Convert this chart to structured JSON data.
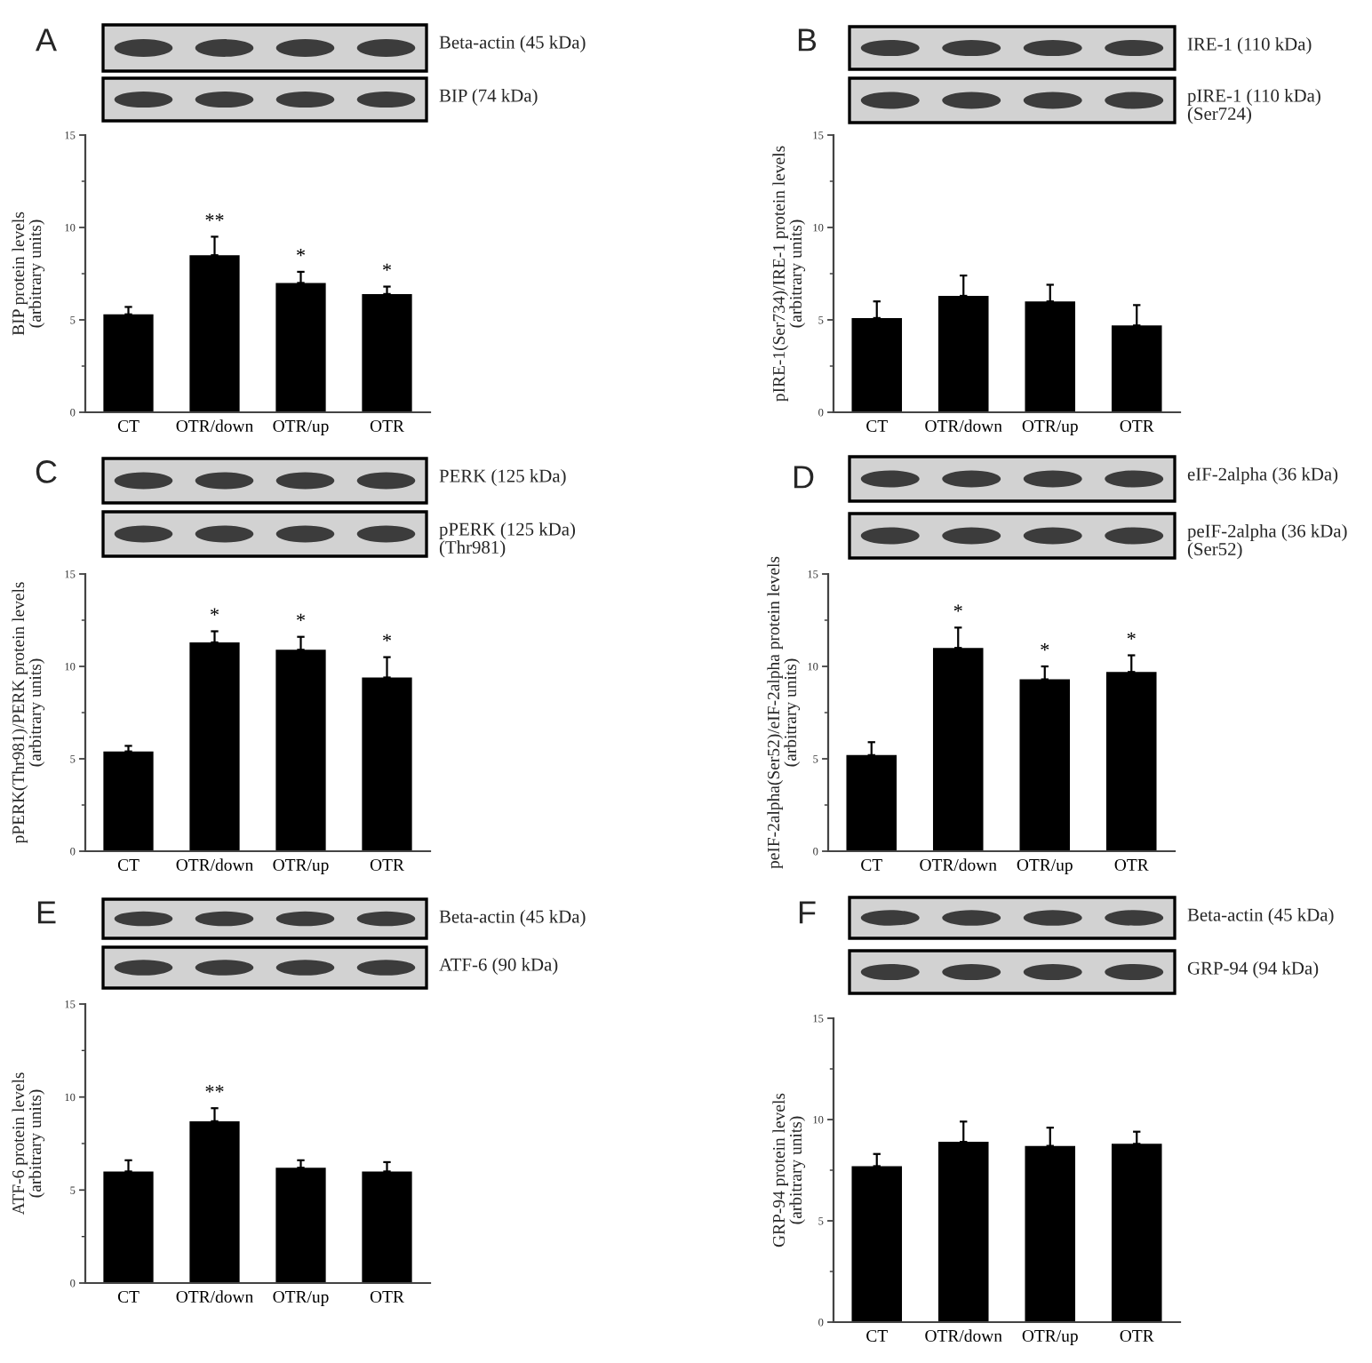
{
  "chart_data": [
    {
      "type": "bar",
      "title": "A",
      "categories": [
        "CT",
        "OTR/down",
        "OTR/up",
        "OTR"
      ],
      "values": [
        5.3,
        8.5,
        7.0,
        6.4
      ],
      "errors": [
        [
          5.3,
          5.7
        ],
        [
          8.5,
          9.5
        ],
        [
          7.0,
          7.6
        ],
        [
          6.4,
          6.8
        ]
      ],
      "color": "#000000",
      "ylim": [
        0,
        15
      ],
      "yticks": [
        0,
        {
          "value": 2.5,
          "label": null
        },
        5,
        {
          "value": 7.5,
          "label": null
        },
        10,
        {
          "value": 12.5,
          "label": null
        },
        15
      ],
      "ylabel": "BIP protein levels\n(arbitrary units)",
      "annotations": [
        "Beta-actin (45 kDa)",
        "BIP (74 kDa)",
        {
          "text": "**",
          "x": "OTR/down",
          "y": 8.5
        },
        {
          "text": "*",
          "x": "OTR/up",
          "y": 7.0
        },
        {
          "text": "*",
          "x": "OTR",
          "y": 6.4
        }
      ]
    },
    {
      "type": "bar",
      "title": "B",
      "categories": [
        "CT",
        "OTR/down",
        "OTR/up",
        "OTR"
      ],
      "values": [
        5.1,
        6.3,
        6.0,
        4.7
      ],
      "errors": [
        [
          5.1,
          6.0
        ],
        [
          6.3,
          7.4
        ],
        [
          6.0,
          6.9
        ],
        [
          4.7,
          5.8
        ]
      ],
      "color": "#000000",
      "ylim": [
        0,
        15
      ],
      "yticks": [
        0,
        {
          "value": 2.5,
          "label": null
        },
        5,
        {
          "value": 7.5,
          "label": null
        },
        10,
        {
          "value": 12.5,
          "label": null
        },
        15
      ],
      "ylabel": "pIRE-1(Ser734)/IRE-1 protein levels\n(arbitrary units)",
      "annotations": [
        "IRE-1 (110 kDa)",
        "pIRE-1 (110 kDa)\n(Ser724)"
      ]
    },
    {
      "type": "bar",
      "title": "C",
      "categories": [
        "CT",
        "OTR/down",
        "OTR/up",
        "OTR"
      ],
      "values": [
        5.4,
        11.3,
        10.9,
        9.4
      ],
      "errors": [
        [
          5.4,
          5.7
        ],
        [
          11.3,
          11.9
        ],
        [
          10.9,
          11.6
        ],
        [
          9.4,
          10.5
        ]
      ],
      "color": "#000000",
      "ylim": [
        0,
        15
      ],
      "yticks": [
        0,
        {
          "value": 2.5,
          "label": null
        },
        5,
        {
          "value": 7.5,
          "label": null
        },
        10,
        {
          "value": 12.5,
          "label": null
        },
        15
      ],
      "ylabel": "pPERK(Thr981)/PERK protein levels\n(arbitrary units)",
      "annotations": [
        "PERK (125 kDa)",
        "pPERK (125 kDa)\n(Thr981)",
        {
          "text": "*",
          "x": "OTR/down",
          "y": 11.3
        },
        {
          "text": "*",
          "x": "OTR/up",
          "y": 10.9
        },
        {
          "text": "*",
          "x": "OTR",
          "y": 9.4
        }
      ]
    },
    {
      "type": "bar",
      "title": "D",
      "categories": [
        "CT",
        "OTR/down",
        "OTR/up",
        "OTR"
      ],
      "values": [
        5.2,
        11.0,
        9.3,
        9.7
      ],
      "errors": [
        [
          5.2,
          5.9
        ],
        [
          11.0,
          12.1
        ],
        [
          9.3,
          10.0
        ],
        [
          9.7,
          10.6
        ]
      ],
      "color": "#000000",
      "ylim": [
        0,
        15
      ],
      "yticks": [
        0,
        {
          "value": 2.5,
          "label": null
        },
        5,
        {
          "value": 7.5,
          "label": null
        },
        10,
        {
          "value": 12.5,
          "label": null
        },
        15
      ],
      "ylabel": "peIF-2alpha(Ser52)/eIF-2alpha protein levels\n(arbitrary units)",
      "annotations": [
        "eIF-2alpha (36 kDa)",
        "peIF-2alpha (36 kDa)\n(Ser52)",
        {
          "text": "*",
          "x": "OTR/down",
          "y": 11.0
        },
        {
          "text": "*",
          "x": "OTR/up",
          "y": 9.3
        },
        {
          "text": "*",
          "x": "OTR",
          "y": 9.7
        }
      ]
    },
    {
      "type": "bar",
      "title": "E",
      "categories": [
        "CT",
        "OTR/down",
        "OTR/up",
        "OTR"
      ],
      "values": [
        6.0,
        8.7,
        6.2,
        6.0
      ],
      "errors": [
        [
          6.0,
          6.6
        ],
        [
          8.7,
          9.4
        ],
        [
          6.2,
          6.6
        ],
        [
          6.0,
          6.5
        ]
      ],
      "color": "#000000",
      "ylim": [
        0,
        15
      ],
      "yticks": [
        0,
        {
          "value": 2.5,
          "label": null
        },
        5,
        {
          "value": 7.5,
          "label": null
        },
        10,
        {
          "value": 12.5,
          "label": null
        },
        15
      ],
      "ylabel": "ATF-6 protein levels\n(arbitrary units)",
      "annotations": [
        "Beta-actin (45 kDa)",
        "ATF-6 (90 kDa)",
        {
          "text": "**",
          "x": "OTR/down",
          "y": 8.7
        }
      ]
    },
    {
      "type": "bar",
      "title": "F",
      "categories": [
        "CT",
        "OTR/down",
        "OTR/up",
        "OTR"
      ],
      "values": [
        7.7,
        8.9,
        8.7,
        8.8
      ],
      "errors": [
        [
          7.7,
          8.3
        ],
        [
          8.9,
          9.9
        ],
        [
          8.7,
          9.6
        ],
        [
          8.8,
          9.4
        ]
      ],
      "color": "#000000",
      "ylim": [
        0,
        15
      ],
      "yticks": [
        0,
        {
          "value": 2.5,
          "label": null
        },
        5,
        {
          "value": 7.5,
          "label": null
        },
        10,
        {
          "value": 12.5,
          "label": null
        },
        15
      ],
      "ylabel": "GRP-94 protein levels\n(arbitrary units)",
      "annotations": [
        "Beta-actin (45 kDa)",
        "GRP-94 (94 kDa)"
      ]
    }
  ]
}
